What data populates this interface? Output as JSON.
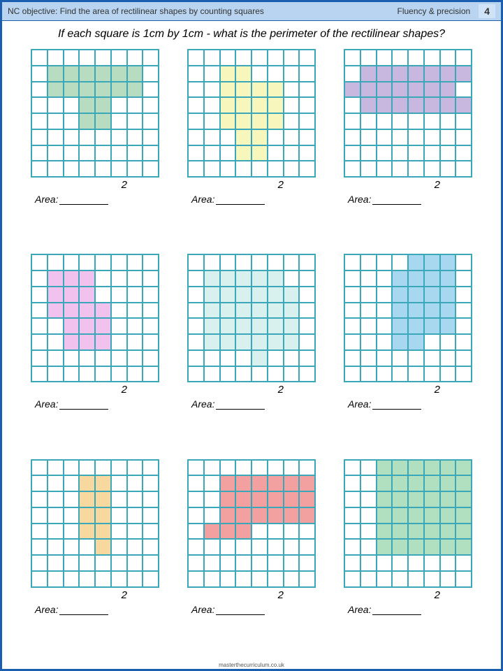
{
  "header": {
    "objective": "NC objective: Find the area of rectilinear shapes by counting squares",
    "section": "Fluency & precision",
    "page_number": "4"
  },
  "question": "If each square is 1cm by 1cm - what is the perimeter of the rectilinear shapes?",
  "footer": "masterthecurriculum.co.uk",
  "grid_size": 8,
  "cell_border_color": "#3aa8b8",
  "answer_label": "Area:",
  "shapes": [
    {
      "color": "#b8dcc0",
      "num": "2",
      "cells": [
        [
          1,
          1
        ],
        [
          1,
          2
        ],
        [
          1,
          3
        ],
        [
          1,
          4
        ],
        [
          1,
          5
        ],
        [
          1,
          6
        ],
        [
          2,
          1
        ],
        [
          2,
          2
        ],
        [
          2,
          3
        ],
        [
          2,
          4
        ],
        [
          2,
          5
        ],
        [
          2,
          6
        ],
        [
          3,
          3
        ],
        [
          3,
          4
        ],
        [
          4,
          3
        ],
        [
          4,
          4
        ]
      ]
    },
    {
      "color": "#f7f7bd",
      "num": "2",
      "cells": [
        [
          1,
          2
        ],
        [
          1,
          3
        ],
        [
          2,
          2
        ],
        [
          2,
          3
        ],
        [
          2,
          4
        ],
        [
          2,
          5
        ],
        [
          3,
          2
        ],
        [
          3,
          3
        ],
        [
          3,
          4
        ],
        [
          3,
          5
        ],
        [
          4,
          2
        ],
        [
          4,
          3
        ],
        [
          4,
          4
        ],
        [
          4,
          5
        ],
        [
          5,
          3
        ],
        [
          5,
          4
        ],
        [
          6,
          3
        ],
        [
          6,
          4
        ]
      ]
    },
    {
      "color": "#c8b8e0",
      "num": "2",
      "cells": [
        [
          1,
          1
        ],
        [
          1,
          2
        ],
        [
          1,
          3
        ],
        [
          1,
          4
        ],
        [
          1,
          5
        ],
        [
          1,
          6
        ],
        [
          1,
          7
        ],
        [
          2,
          0
        ],
        [
          2,
          1
        ],
        [
          2,
          2
        ],
        [
          2,
          3
        ],
        [
          2,
          4
        ],
        [
          2,
          5
        ],
        [
          2,
          6
        ],
        [
          3,
          1
        ],
        [
          3,
          2
        ],
        [
          3,
          3
        ],
        [
          3,
          4
        ],
        [
          3,
          5
        ],
        [
          3,
          6
        ],
        [
          3,
          7
        ]
      ]
    },
    {
      "color": "#f2c2ef",
      "num": "2",
      "cells": [
        [
          1,
          1
        ],
        [
          1,
          2
        ],
        [
          1,
          3
        ],
        [
          2,
          1
        ],
        [
          2,
          2
        ],
        [
          2,
          3
        ],
        [
          3,
          1
        ],
        [
          3,
          2
        ],
        [
          3,
          3
        ],
        [
          3,
          4
        ],
        [
          4,
          2
        ],
        [
          4,
          3
        ],
        [
          4,
          4
        ],
        [
          5,
          2
        ],
        [
          5,
          3
        ],
        [
          5,
          4
        ]
      ]
    },
    {
      "color": "#d8f0ee",
      "num": "2",
      "cells": [
        [
          1,
          1
        ],
        [
          1,
          2
        ],
        [
          1,
          3
        ],
        [
          1,
          4
        ],
        [
          1,
          5
        ],
        [
          2,
          1
        ],
        [
          2,
          2
        ],
        [
          2,
          3
        ],
        [
          2,
          4
        ],
        [
          2,
          5
        ],
        [
          2,
          6
        ],
        [
          3,
          1
        ],
        [
          3,
          2
        ],
        [
          3,
          3
        ],
        [
          3,
          4
        ],
        [
          3,
          5
        ],
        [
          3,
          6
        ],
        [
          4,
          1
        ],
        [
          4,
          2
        ],
        [
          4,
          3
        ],
        [
          4,
          4
        ],
        [
          4,
          5
        ],
        [
          4,
          6
        ],
        [
          5,
          1
        ],
        [
          5,
          2
        ],
        [
          5,
          3
        ],
        [
          5,
          4
        ],
        [
          5,
          5
        ],
        [
          5,
          6
        ],
        [
          6,
          4
        ]
      ]
    },
    {
      "color": "#a8d8f0",
      "num": "2",
      "cells": [
        [
          0,
          4
        ],
        [
          0,
          5
        ],
        [
          0,
          6
        ],
        [
          1,
          3
        ],
        [
          1,
          4
        ],
        [
          1,
          5
        ],
        [
          1,
          6
        ],
        [
          2,
          3
        ],
        [
          2,
          4
        ],
        [
          2,
          5
        ],
        [
          2,
          6
        ],
        [
          3,
          3
        ],
        [
          3,
          4
        ],
        [
          3,
          5
        ],
        [
          3,
          6
        ],
        [
          4,
          3
        ],
        [
          4,
          4
        ],
        [
          4,
          5
        ],
        [
          4,
          6
        ],
        [
          5,
          3
        ],
        [
          5,
          4
        ]
      ]
    },
    {
      "color": "#f7d9a0",
      "num": "2",
      "cells": [
        [
          1,
          3
        ],
        [
          1,
          4
        ],
        [
          2,
          3
        ],
        [
          2,
          4
        ],
        [
          3,
          3
        ],
        [
          3,
          4
        ],
        [
          4,
          3
        ],
        [
          4,
          4
        ],
        [
          5,
          4
        ]
      ]
    },
    {
      "color": "#f2a0a0",
      "num": "2",
      "cells": [
        [
          1,
          2
        ],
        [
          1,
          3
        ],
        [
          1,
          4
        ],
        [
          1,
          5
        ],
        [
          1,
          6
        ],
        [
          1,
          7
        ],
        [
          2,
          2
        ],
        [
          2,
          3
        ],
        [
          2,
          4
        ],
        [
          2,
          5
        ],
        [
          2,
          6
        ],
        [
          2,
          7
        ],
        [
          3,
          2
        ],
        [
          3,
          3
        ],
        [
          3,
          4
        ],
        [
          3,
          5
        ],
        [
          3,
          6
        ],
        [
          3,
          7
        ],
        [
          4,
          1
        ],
        [
          4,
          2
        ],
        [
          4,
          3
        ]
      ]
    },
    {
      "color": "#b0e0c0",
      "num": "2",
      "cells": [
        [
          0,
          2
        ],
        [
          0,
          3
        ],
        [
          0,
          4
        ],
        [
          0,
          5
        ],
        [
          0,
          6
        ],
        [
          0,
          7
        ],
        [
          1,
          2
        ],
        [
          1,
          3
        ],
        [
          1,
          4
        ],
        [
          1,
          5
        ],
        [
          1,
          6
        ],
        [
          1,
          7
        ],
        [
          2,
          2
        ],
        [
          2,
          3
        ],
        [
          2,
          4
        ],
        [
          2,
          5
        ],
        [
          2,
          6
        ],
        [
          2,
          7
        ],
        [
          3,
          2
        ],
        [
          3,
          3
        ],
        [
          3,
          4
        ],
        [
          3,
          5
        ],
        [
          3,
          6
        ],
        [
          3,
          7
        ],
        [
          4,
          2
        ],
        [
          4,
          3
        ],
        [
          4,
          4
        ],
        [
          4,
          5
        ],
        [
          4,
          6
        ],
        [
          4,
          7
        ],
        [
          5,
          2
        ],
        [
          5,
          3
        ],
        [
          5,
          4
        ],
        [
          5,
          5
        ],
        [
          5,
          6
        ],
        [
          5,
          7
        ]
      ]
    }
  ]
}
